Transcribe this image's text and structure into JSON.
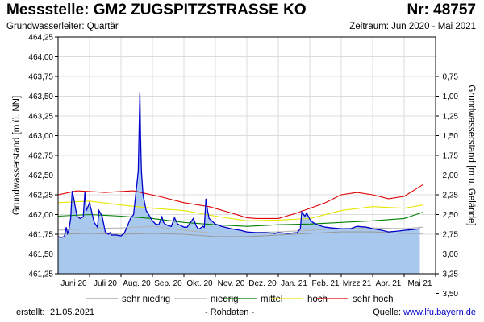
{
  "header": {
    "title": "Messstelle: GM2 ZUGSPITZSTRASSE KO",
    "nr": "Nr: 48757",
    "aquifer": "Grundwasserleiter: Quartär",
    "period": "Zeitraum: Jun 2020 - Mai 2021"
  },
  "footer": {
    "created_label": "erstellt:",
    "created_date": "21.05.2021",
    "raw": "- Rohdaten -",
    "source_label": "Quelle:",
    "source_url": "www.lfu.bayern.de"
  },
  "colors": {
    "fill": "#a9c8ee",
    "line": "#0000cc",
    "sehr_niedrig": "#9a9a9a",
    "niedrig": "#b4b4b4",
    "mittel": "#008000",
    "hoch": "#e6e600",
    "sehr_hoch": "#e00000",
    "grid": "#dcdcdc"
  },
  "chart_data": {
    "type": "area",
    "ylabel": "Grundwasserstand [m ü. NN]",
    "y2label": "Grundwasserstand [m u. Gelände]",
    "ylim": [
      461.25,
      464.25
    ],
    "y_ticks": [
      "461,25",
      "461,50",
      "461,75",
      "462,00",
      "462,25",
      "462,50",
      "462,75",
      "463,00",
      "463,25",
      "463,50",
      "463,75",
      "464,00",
      "464,25"
    ],
    "y2_ticks": [
      "3,50",
      "3,25",
      "3,00",
      "2,75",
      "2,50",
      "2,25",
      "2,00",
      "1,75",
      "1,50",
      "1,25",
      "1,00",
      "0,75"
    ],
    "y2_ground_level": 464.5,
    "x_range": [
      0,
      12
    ],
    "x_labels": [
      "Juni 20",
      "Juli 20",
      "Aug. 20",
      "Sep. 20",
      "Okt. 20",
      "Nov. 20",
      "Dez. 20",
      "Jan. 21",
      "Feb. 21",
      "Mrzz 21",
      "Apr. 21",
      "Mai 21"
    ],
    "series": [
      {
        "name": "Rohdaten",
        "x": [
          0,
          0.1,
          0.2,
          0.26,
          0.3,
          0.34,
          0.4,
          0.45,
          0.5,
          0.6,
          0.7,
          0.8,
          0.85,
          0.9,
          1.0,
          1.1,
          1.15,
          1.25,
          1.3,
          1.4,
          1.5,
          1.6,
          1.65,
          1.7,
          1.85,
          2.0,
          2.1,
          2.2,
          2.3,
          2.4,
          2.55,
          2.6,
          2.62,
          2.65,
          2.7,
          2.8,
          3.0,
          3.1,
          3.2,
          3.3,
          3.35,
          3.4,
          3.5,
          3.6,
          3.7,
          3.8,
          3.9,
          3.95,
          4.0,
          4.1,
          4.3,
          4.4,
          4.45,
          4.5,
          4.6,
          4.65,
          4.7,
          4.75,
          4.8,
          5.0,
          5.2,
          5.5,
          5.8,
          6.0,
          6.3,
          6.6,
          6.9,
          7.0,
          7.3,
          7.6,
          7.7,
          7.75,
          7.8,
          7.85,
          7.9,
          8.0,
          8.1,
          8.3,
          8.5,
          8.7,
          9.0,
          9.3,
          9.5,
          9.8,
          10.0,
          10.3,
          10.5,
          10.8,
          11.0,
          11.3,
          11.5
        ],
        "values": [
          461.72,
          461.71,
          461.72,
          461.84,
          461.76,
          461.8,
          461.95,
          462.3,
          462.2,
          461.98,
          461.95,
          461.97,
          462.28,
          462.05,
          462.15,
          461.98,
          461.9,
          461.84,
          462.05,
          461.98,
          461.78,
          461.75,
          461.77,
          461.74,
          461.74,
          461.73,
          461.76,
          461.85,
          461.95,
          462.0,
          462.55,
          463.55,
          463.0,
          462.55,
          462.25,
          462.05,
          461.92,
          461.88,
          461.87,
          461.97,
          461.9,
          461.88,
          461.86,
          461.85,
          461.96,
          461.88,
          461.86,
          461.85,
          461.84,
          461.84,
          461.95,
          461.85,
          461.82,
          461.82,
          461.85,
          461.84,
          462.2,
          462.05,
          461.95,
          461.88,
          461.85,
          461.82,
          461.8,
          461.78,
          461.77,
          461.77,
          461.76,
          461.77,
          461.76,
          461.77,
          461.82,
          462.05,
          462.0,
          461.98,
          462.02,
          461.94,
          461.9,
          461.86,
          461.84,
          461.83,
          461.82,
          461.82,
          461.85,
          461.84,
          461.82,
          461.8,
          461.78,
          461.79,
          461.8,
          461.81,
          461.82
        ]
      },
      {
        "name": "sehr niedrig",
        "x": [
          0,
          1,
          2,
          3,
          4,
          5,
          6,
          7,
          8,
          9,
          10,
          11,
          11.6
        ],
        "values": [
          461.75,
          461.76,
          461.75,
          461.76,
          461.75,
          461.72,
          461.72,
          461.74,
          461.76,
          461.78,
          461.78,
          461.76,
          461.76
        ]
      },
      {
        "name": "niedrig",
        "x": [
          0,
          1,
          2,
          3,
          4,
          5,
          6,
          7,
          8,
          9,
          10,
          11,
          11.6
        ],
        "values": [
          461.8,
          461.82,
          461.83,
          461.85,
          461.8,
          461.76,
          461.77,
          461.78,
          461.8,
          461.82,
          461.83,
          461.82,
          461.84
        ]
      },
      {
        "name": "mittel",
        "x": [
          0,
          1,
          2,
          3,
          4,
          5,
          6,
          7,
          8,
          9,
          10,
          11,
          11.6
        ],
        "values": [
          461.98,
          462.0,
          461.98,
          461.95,
          461.9,
          461.87,
          461.85,
          461.87,
          461.88,
          461.9,
          461.92,
          461.95,
          462.03
        ]
      },
      {
        "name": "hoch",
        "x": [
          0,
          1,
          2,
          3,
          4,
          5,
          6,
          7,
          8,
          9,
          10,
          11,
          11.6
        ],
        "values": [
          462.15,
          462.17,
          462.12,
          462.08,
          462.05,
          461.98,
          461.92,
          461.93,
          461.95,
          462.05,
          462.1,
          462.08,
          462.12
        ]
      },
      {
        "name": "sehr hoch",
        "x": [
          0,
          0.6,
          1.5,
          2.4,
          3.3,
          4,
          4.8,
          5.5,
          6,
          6.3,
          7,
          7.6,
          8.5,
          9,
          9.5,
          10,
          10.5,
          11,
          11.6
        ],
        "values": [
          462.25,
          462.3,
          462.28,
          462.3,
          462.22,
          462.15,
          462.1,
          462.02,
          461.96,
          461.95,
          461.95,
          462.02,
          462.15,
          462.25,
          462.28,
          462.25,
          462.2,
          462.23,
          462.38
        ]
      }
    ],
    "legend": [
      "sehr niedrig",
      "niedrig",
      "mittel",
      "hoch",
      "sehr hoch"
    ]
  }
}
